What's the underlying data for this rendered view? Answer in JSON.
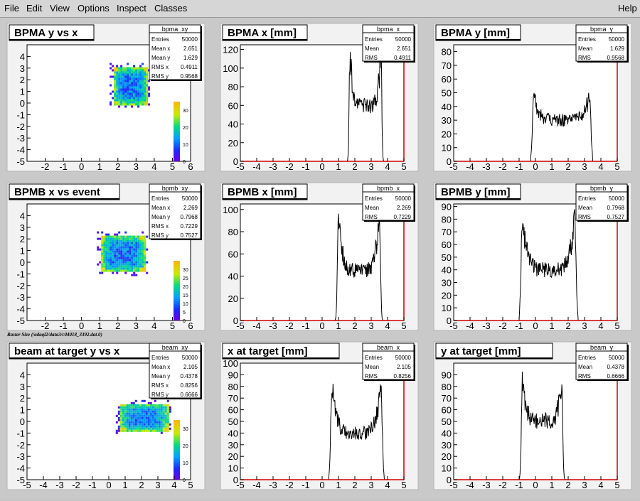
{
  "menu": {
    "items": [
      "File",
      "Edit",
      "View",
      "Options",
      "Inspect",
      "Classes"
    ],
    "help": "Help"
  },
  "raster_label": "Raster Size (/adaql2/data3/c04018_3392.dat.0)",
  "colors": {
    "canvas": "#c9c9c9",
    "frame": "#f2f2f2",
    "line": "#000000",
    "axis_hl": "#d00000"
  },
  "chart_data": [
    {
      "type": "heatmap",
      "name": "bpma_xy",
      "title": "BPMA y vs x",
      "xlim": [
        -3,
        6
      ],
      "ylim": [
        -5,
        5
      ],
      "xticks": [
        -2,
        -1,
        0,
        1,
        2,
        3,
        4,
        5,
        6
      ],
      "yticks": [
        -5,
        -4,
        -3,
        -2,
        -1,
        0,
        1,
        2,
        3,
        4
      ],
      "region": {
        "x": [
          1.7,
          3.6
        ],
        "y": [
          -0.1,
          3.2
        ]
      },
      "palette": {
        "zmax": 35,
        "ticks": [
          0,
          10,
          20,
          30
        ]
      },
      "stats": [
        [
          "Entries",
          "50000"
        ],
        [
          "Mean x",
          "2.651"
        ],
        [
          "Mean y",
          "1.629"
        ],
        [
          "RMS x",
          "0.4911"
        ],
        [
          "RMS y",
          "0.9568"
        ]
      ]
    },
    {
      "type": "line",
      "name": "bpma_x",
      "title": "BPMA x [mm]",
      "xlim": [
        -5,
        5
      ],
      "ylim": [
        0,
        125
      ],
      "xticks": [
        -5,
        -4,
        -3,
        -2,
        -1,
        0,
        1,
        2,
        3,
        4,
        5
      ],
      "yticks": [
        0,
        20,
        40,
        60,
        80,
        100,
        120
      ],
      "profile": {
        "lo": 1.7,
        "hi": 3.6,
        "edge_peak": 115,
        "mid": 60
      },
      "stats": [
        [
          "Entries",
          "50000"
        ],
        [
          "Mean",
          "2.651"
        ],
        [
          "RMS",
          "0.4911"
        ]
      ]
    },
    {
      "type": "line",
      "name": "bpma_y",
      "title": "BPMA y [mm]",
      "xlim": [
        -5,
        5
      ],
      "ylim": [
        0,
        85
      ],
      "xticks": [
        -5,
        -4,
        -3,
        -2,
        -1,
        0,
        1,
        2,
        3,
        4,
        5
      ],
      "yticks": [
        0,
        10,
        20,
        30,
        40,
        50,
        60,
        70,
        80
      ],
      "profile": {
        "lo": -0.1,
        "hi": 3.3,
        "edge_peak": 48,
        "mid": 30
      },
      "stats": [
        [
          "Entries",
          "50000"
        ],
        [
          "Mean",
          "1.629"
        ],
        [
          "RMS",
          "0.9568"
        ]
      ]
    },
    {
      "type": "heatmap",
      "name": "bpmb_xy",
      "title": "BPMB x vs event",
      "xlim": [
        -3,
        6
      ],
      "ylim": [
        -5,
        5
      ],
      "xticks": [
        -2,
        -1,
        0,
        1,
        2,
        3,
        4,
        5,
        6
      ],
      "yticks": [
        -5,
        -4,
        -3,
        -2,
        -1,
        0,
        1,
        2,
        3,
        4
      ],
      "region": {
        "x": [
          1.0,
          3.5
        ],
        "y": [
          -0.8,
          2.4
        ]
      },
      "palette": {
        "zmax": 35,
        "ticks": [
          0,
          5,
          10,
          15,
          20,
          25,
          30
        ]
      },
      "stats": [
        [
          "Entries",
          "50000"
        ],
        [
          "Mean x",
          "2.269"
        ],
        [
          "Mean y",
          "0.7968"
        ],
        [
          "RMS x",
          "0.7229"
        ],
        [
          "RMS y",
          "0.7527"
        ]
      ]
    },
    {
      "type": "line",
      "name": "bpmb_x",
      "title": "BPMB x [mm]",
      "xlim": [
        -5,
        5
      ],
      "ylim": [
        0,
        105
      ],
      "xticks": [
        -5,
        -4,
        -3,
        -2,
        -1,
        0,
        1,
        2,
        3,
        4,
        5
      ],
      "yticks": [
        0,
        20,
        40,
        60,
        80,
        100
      ],
      "profile": {
        "lo": 1.0,
        "hi": 3.5,
        "edge_peak": 95,
        "mid": 45
      },
      "stats": [
        [
          "Entries",
          "50000"
        ],
        [
          "Mean",
          "2.269"
        ],
        [
          "RMS",
          "0.7229"
        ]
      ]
    },
    {
      "type": "line",
      "name": "bpmb_y",
      "title": "BPMB y [mm]",
      "xlim": [
        -5,
        5
      ],
      "ylim": [
        0,
        92
      ],
      "xticks": [
        -5,
        -4,
        -3,
        -2,
        -1,
        0,
        1,
        2,
        3,
        4,
        5
      ],
      "yticks": [
        0,
        10,
        20,
        30,
        40,
        50,
        60,
        70,
        80,
        90
      ],
      "profile": {
        "lo": -0.8,
        "hi": 2.4,
        "edge_peak": 80,
        "mid": 40
      },
      "stats": [
        [
          "Entries",
          "50000"
        ],
        [
          "Mean",
          "0.7968"
        ],
        [
          "RMS",
          "0.7527"
        ]
      ]
    },
    {
      "type": "heatmap",
      "name": "beam_xy",
      "title": "beam at target y vs x",
      "xlim": [
        -5,
        5
      ],
      "ylim": [
        -5,
        5
      ],
      "xticks": [
        -5,
        -4,
        -3,
        -2,
        -1,
        0,
        1,
        2,
        3,
        4,
        5
      ],
      "yticks": [
        -5,
        -4,
        -3,
        -2,
        -1,
        0,
        1,
        2,
        3,
        4
      ],
      "region": {
        "x": [
          0.6,
          3.6
        ],
        "y": [
          -0.8,
          1.6
        ]
      },
      "palette": {
        "zmax": 35,
        "ticks": [
          0,
          10,
          20,
          30
        ]
      },
      "stats": [
        [
          "Entries",
          "50000"
        ],
        [
          "Mean x",
          "2.105"
        ],
        [
          "Mean y",
          "0.4378"
        ],
        [
          "RMS x",
          "0.8256"
        ],
        [
          "RMS y",
          "0.6666"
        ]
      ]
    },
    {
      "type": "line",
      "name": "beam_x",
      "title": "x at target [mm]",
      "xlim": [
        -5,
        5
      ],
      "ylim": [
        0,
        100
      ],
      "xticks": [
        -5,
        -4,
        -3,
        -2,
        -1,
        0,
        1,
        2,
        3,
        4,
        5
      ],
      "yticks": [
        0,
        10,
        20,
        30,
        40,
        50,
        60,
        70,
        80,
        90,
        100
      ],
      "profile": {
        "lo": 0.6,
        "hi": 3.6,
        "edge_peak": 80,
        "mid": 40
      },
      "stats": [
        [
          "Entries",
          "50000"
        ],
        [
          "Mean",
          "2.105"
        ],
        [
          "RMS",
          "0.8256"
        ]
      ]
    },
    {
      "type": "line",
      "name": "beam_y",
      "title": "y at target [mm]",
      "xlim": [
        -5,
        5
      ],
      "ylim": [
        0,
        100
      ],
      "xticks": [
        -5,
        -4,
        -3,
        -2,
        -1,
        0,
        1,
        2,
        3,
        4,
        5
      ],
      "yticks": [
        0,
        10,
        20,
        30,
        40,
        50,
        60,
        70,
        80,
        90
      ],
      "profile": {
        "lo": -0.8,
        "hi": 1.6,
        "edge_peak": 85,
        "mid": 50
      },
      "stats": [
        [
          "Entries",
          "50000"
        ],
        [
          "Mean",
          "0.4378"
        ],
        [
          "RMS",
          "0.6666"
        ]
      ]
    }
  ]
}
